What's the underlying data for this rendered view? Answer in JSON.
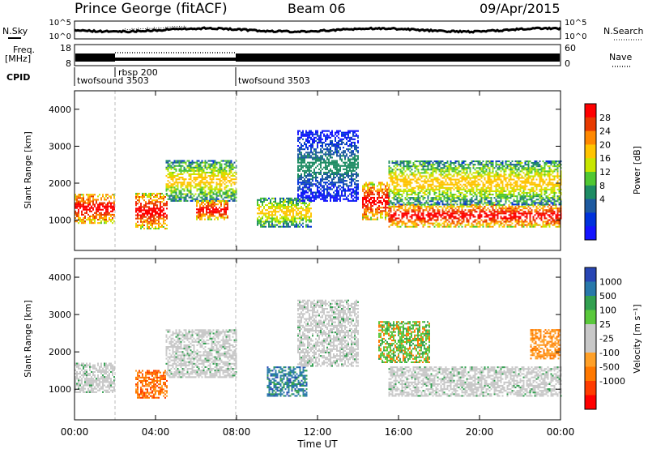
{
  "header": {
    "station": "Prince George (fitACF)",
    "beam": "Beam 06",
    "date": "09/Apr/2015"
  },
  "noise_panel": {
    "left_label": "N.Sky",
    "right_label": "N.Search",
    "left_ticks": [
      "10^5",
      "10^0"
    ],
    "right_ticks": [
      "10^5",
      "10^0"
    ]
  },
  "freq_panel": {
    "left_label_1": "Freq.",
    "left_label_2": "[MHz]",
    "right_label": "Nave",
    "left_ticks": [
      "18",
      "8"
    ],
    "right_ticks": [
      "60",
      "0"
    ]
  },
  "cpid": {
    "label": "CPID",
    "segments": [
      {
        "name": "twofsound 3503",
        "start_hour": 0
      },
      {
        "name": "rbsp 200",
        "start_hour": 2
      },
      {
        "name": "twofsound 3503",
        "start_hour": 8
      }
    ]
  },
  "power_colorbar": {
    "label": "Power [dB]",
    "ticks": [
      "28",
      "24",
      "20",
      "16",
      "12",
      "8",
      "4"
    ],
    "colors": [
      "#ff0000",
      "#e83a00",
      "#ff8800",
      "#ffc400",
      "#c8e600",
      "#50c832",
      "#1e8c64",
      "#1e5aa0",
      "#0032dc",
      "#1414ff"
    ]
  },
  "velocity_colorbar": {
    "label": "Velocity [m s⁻¹]",
    "ticks": [
      "1000",
      "500",
      "100",
      "25",
      "-25",
      "-100",
      "-500",
      "-1000"
    ],
    "colors": [
      "#2846b4",
      "#2878aa",
      "#32a050",
      "#5ac83c",
      "#c8c8c8",
      "#c8c8c8",
      "#ffa028",
      "#ff7800",
      "#ff3c00",
      "#ff0000"
    ]
  },
  "chart_data": {
    "type": "heatmap",
    "x_axis": {
      "label": "Time UT",
      "ticks": [
        "00:00",
        "04:00",
        "08:00",
        "12:00",
        "16:00",
        "20:00",
        "00:00"
      ],
      "range_hours": [
        0,
        24
      ]
    },
    "y_axis": {
      "label": "Slant Range [km]",
      "ticks": [
        "1000",
        "2000",
        "3000",
        "4000"
      ],
      "range_km": [
        180,
        4500
      ]
    },
    "cpid_boundaries_hours": [
      2,
      8
    ],
    "panels": [
      {
        "name": "Power",
        "units": "dB",
        "scatter_bands": [
          {
            "start_hour": 0.0,
            "end_hour": 2.0,
            "range_km": [
              900,
              1700
            ],
            "level": "high",
            "note": "red core near 1100 km, green/blue edges"
          },
          {
            "start_hour": 3.0,
            "end_hour": 4.6,
            "range_km": [
              750,
              1700
            ],
            "level": "high",
            "note": "red/orange arc rising to 1700 km"
          },
          {
            "start_hour": 4.5,
            "end_hour": 8.0,
            "range_km": [
              1500,
              2600
            ],
            "level": "medium",
            "note": "green/orange band rising toward 2600 km"
          },
          {
            "start_hour": 6.0,
            "end_hour": 7.6,
            "range_km": [
              1000,
              1500
            ],
            "level": "high",
            "note": "red patches"
          },
          {
            "start_hour": 9.0,
            "end_hour": 11.7,
            "range_km": [
              800,
              1600
            ],
            "level": "medium",
            "note": "green/orange/red patches"
          },
          {
            "start_hour": 11.0,
            "end_hour": 14.0,
            "range_km": [
              1500,
              3400
            ],
            "level": "low",
            "note": "blue arc peaking near 3300 km"
          },
          {
            "start_hour": 14.2,
            "end_hour": 15.5,
            "range_km": [
              1000,
              2000
            ],
            "level": "high",
            "note": "red/orange feature"
          },
          {
            "start_hour": 15.5,
            "end_hour": 24.0,
            "range_km": [
              800,
              1400
            ],
            "level": "high",
            "note": "persistent red band near 1100 km"
          },
          {
            "start_hour": 15.5,
            "end_hour": 24.0,
            "range_km": [
              1400,
              2600
            ],
            "level": "medium",
            "note": "green/yellow/blue band"
          }
        ]
      },
      {
        "name": "Velocity",
        "units": "m s^-1",
        "scatter_bands": [
          {
            "start_hour": 0.0,
            "end_hour": 2.0,
            "range_km": [
              900,
              1700
            ],
            "value_m_s": 0,
            "note": "grey near-zero (ground scatter)"
          },
          {
            "start_hour": 3.0,
            "end_hour": 4.6,
            "range_km": [
              750,
              1500
            ],
            "value_m_s": -500,
            "note": "orange/red negative velocities"
          },
          {
            "start_hour": 4.5,
            "end_hour": 8.0,
            "range_km": [
              1300,
              2600
            ],
            "value_m_s": 0,
            "note": "grey band"
          },
          {
            "start_hour": 9.5,
            "end_hour": 11.5,
            "range_km": [
              800,
              1600
            ],
            "value_m_s": 500,
            "note": "blue/green positive patch"
          },
          {
            "start_hour": 11.0,
            "end_hour": 14.0,
            "range_km": [
              1600,
              3400
            ],
            "value_m_s": 0,
            "note": "grey arc"
          },
          {
            "start_hour": 15.0,
            "end_hour": 17.5,
            "range_km": [
              1700,
              2800
            ],
            "value_m_s": 100,
            "note": "mixed green/orange"
          },
          {
            "start_hour": 15.5,
            "end_hour": 24.0,
            "range_km": [
              800,
              1600
            ],
            "value_m_s": 0,
            "note": "grey band"
          },
          {
            "start_hour": 22.5,
            "end_hour": 24.0,
            "range_km": [
              1800,
              2600
            ],
            "value_m_s": -100,
            "note": "orange patch"
          }
        ]
      }
    ]
  }
}
